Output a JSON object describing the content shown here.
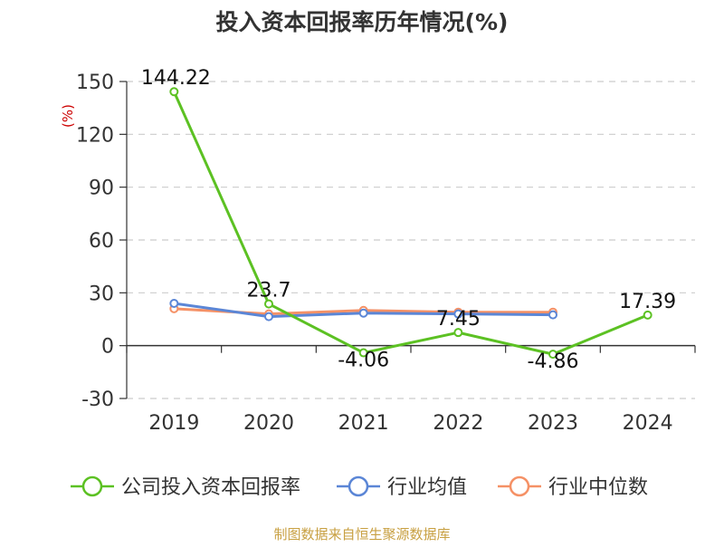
{
  "chart_data": {
    "type": "line",
    "title": "投入资本回报率历年情况(%)",
    "ylabel": "(%)",
    "xlabel": "",
    "categories": [
      "2019",
      "2020",
      "2021",
      "2022",
      "2023",
      "2024"
    ],
    "ylim": [
      -30,
      150
    ],
    "yticks": [
      150,
      120,
      90,
      60,
      30,
      0,
      -30
    ],
    "grid": true,
    "legend_position": "bottom",
    "series": [
      {
        "name": "公司投入资本回报率",
        "color": "#5cc123",
        "values": [
          144.22,
          23.7,
          -4.06,
          7.45,
          -4.86,
          17.39
        ],
        "labels": [
          "144.22",
          "23.7",
          "-4.06",
          "7.45",
          "-4.86",
          "17.39"
        ]
      },
      {
        "name": "行业均值",
        "color": "#5b86d6",
        "values": [
          24,
          16.5,
          18.5,
          18,
          17.5,
          null
        ]
      },
      {
        "name": "行业中位数",
        "color": "#f59166",
        "values": [
          21,
          18,
          20,
          19,
          19,
          null
        ]
      }
    ]
  },
  "source": "制图数据来自恒生聚源数据库"
}
